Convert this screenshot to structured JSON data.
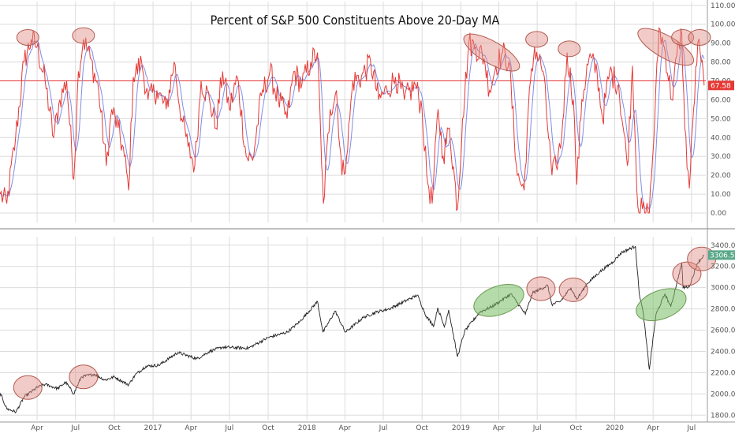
{
  "chart_data": [
    {
      "panel": "top",
      "type": "line",
      "title": "Percent of S&P 500 Constituents Above 20-Day MA",
      "ylim": [
        -5,
        112
      ],
      "y_ticks": [
        "0.00",
        "10.00",
        "20.00",
        "30.00",
        "40.00",
        "50.00",
        "60.00",
        "70.00",
        "80.00",
        "90.00",
        "100.00",
        "110.00"
      ],
      "last_value": "67.58",
      "reference_line": 70,
      "grid": true,
      "series": [
        {
          "color": "#e53935",
          "anchors": [
            [
              "2016-01-04",
              10
            ],
            [
              "2016-01-20",
              5
            ],
            [
              "2016-02-10",
              40
            ],
            [
              "2016-03-01",
              80
            ],
            [
              "2016-03-18",
              92
            ],
            [
              "2016-04-01",
              88
            ],
            [
              "2016-04-20",
              70
            ],
            [
              "2016-05-10",
              40
            ],
            [
              "2016-05-25",
              60
            ],
            [
              "2016-06-10",
              70
            ],
            [
              "2016-06-27",
              18
            ],
            [
              "2016-07-08",
              75
            ],
            [
              "2016-07-20",
              92
            ],
            [
              "2016-08-05",
              82
            ],
            [
              "2016-08-25",
              65
            ],
            [
              "2016-09-12",
              25
            ],
            [
              "2016-09-25",
              55
            ],
            [
              "2016-10-10",
              45
            ],
            [
              "2016-10-25",
              30
            ],
            [
              "2016-11-04",
              12
            ],
            [
              "2016-11-15",
              72
            ],
            [
              "2016-12-05",
              80
            ],
            [
              "2016-12-20",
              60
            ],
            [
              "2017-01-10",
              65
            ],
            [
              "2017-02-01",
              55
            ],
            [
              "2017-02-20",
              80
            ],
            [
              "2017-03-10",
              50
            ],
            [
              "2017-03-25",
              35
            ],
            [
              "2017-04-10",
              25
            ],
            [
              "2017-04-25",
              70
            ],
            [
              "2017-05-15",
              60
            ],
            [
              "2017-05-30",
              45
            ],
            [
              "2017-06-15",
              75
            ],
            [
              "2017-07-01",
              55
            ],
            [
              "2017-07-20",
              72
            ],
            [
              "2017-08-10",
              30
            ],
            [
              "2017-08-25",
              28
            ],
            [
              "2017-09-15",
              62
            ],
            [
              "2017-10-05",
              75
            ],
            [
              "2017-10-25",
              60
            ],
            [
              "2017-11-15",
              50
            ],
            [
              "2017-12-01",
              75
            ],
            [
              "2017-12-20",
              68
            ],
            [
              "2018-01-10",
              80
            ],
            [
              "2018-01-26",
              85
            ],
            [
              "2018-02-05",
              25
            ],
            [
              "2018-02-09",
              5
            ],
            [
              "2018-02-25",
              55
            ],
            [
              "2018-03-12",
              65
            ],
            [
              "2018-03-25",
              20
            ],
            [
              "2018-04-05",
              30
            ],
            [
              "2018-04-20",
              70
            ],
            [
              "2018-05-10",
              72
            ],
            [
              "2018-06-01",
              80
            ],
            [
              "2018-06-20",
              60
            ],
            [
              "2018-07-10",
              65
            ],
            [
              "2018-07-30",
              72
            ],
            [
              "2018-08-20",
              60
            ],
            [
              "2018-09-15",
              68
            ],
            [
              "2018-10-01",
              55
            ],
            [
              "2018-10-12",
              20
            ],
            [
              "2018-10-25",
              5
            ],
            [
              "2018-11-08",
              55
            ],
            [
              "2018-11-20",
              30
            ],
            [
              "2018-12-05",
              45
            ],
            [
              "2018-12-24",
              2
            ],
            [
              "2019-01-05",
              50
            ],
            [
              "2019-01-20",
              90
            ],
            [
              "2019-02-05",
              88
            ],
            [
              "2019-02-25",
              82
            ],
            [
              "2019-03-10",
              65
            ],
            [
              "2019-03-25",
              78
            ],
            [
              "2019-04-10",
              85
            ],
            [
              "2019-04-25",
              80
            ],
            [
              "2019-05-15",
              20
            ],
            [
              "2019-05-31",
              12
            ],
            [
              "2019-06-10",
              55
            ],
            [
              "2019-06-25",
              88
            ],
            [
              "2019-07-15",
              75
            ],
            [
              "2019-08-05",
              20
            ],
            [
              "2019-08-15",
              25
            ],
            [
              "2019-08-28",
              40
            ],
            [
              "2019-09-10",
              85
            ],
            [
              "2019-09-25",
              60
            ],
            [
              "2019-10-03",
              15
            ],
            [
              "2019-10-15",
              60
            ],
            [
              "2019-11-01",
              82
            ],
            [
              "2019-11-20",
              75
            ],
            [
              "2019-12-03",
              50
            ],
            [
              "2019-12-20",
              75
            ],
            [
              "2020-01-10",
              68
            ],
            [
              "2020-01-31",
              25
            ],
            [
              "2020-02-12",
              78
            ],
            [
              "2020-02-25",
              3
            ],
            [
              "2020-03-12",
              0
            ],
            [
              "2020-03-23",
              0
            ],
            [
              "2020-04-05",
              50
            ],
            [
              "2020-04-15",
              98
            ],
            [
              "2020-04-30",
              85
            ],
            [
              "2020-05-15",
              60
            ],
            [
              "2020-06-01",
              90
            ],
            [
              "2020-06-08",
              95
            ],
            [
              "2020-06-15",
              45
            ],
            [
              "2020-06-26",
              13
            ],
            [
              "2020-07-06",
              55
            ],
            [
              "2020-07-16",
              90
            ],
            [
              "2020-07-24",
              80
            ],
            [
              "2020-07-31",
              67.58
            ]
          ]
        },
        {
          "color": "#7e8ee8",
          "smoothed": true
        }
      ]
    },
    {
      "panel": "bottom",
      "type": "line",
      "ylim": [
        1750,
        3480
      ],
      "y_ticks": [
        "1800.00",
        "2000.00",
        "2200.00",
        "2400.00",
        "2600.00",
        "2800.00",
        "3000.00",
        "3200.00",
        "3400.00"
      ],
      "last_value": "3306.51",
      "grid": true,
      "series": [
        {
          "color": "#222222",
          "anchors": [
            [
              "2016-01-04",
              2010
            ],
            [
              "2016-01-20",
              1860
            ],
            [
              "2016-02-11",
              1830
            ],
            [
              "2016-03-01",
              1970
            ],
            [
              "2016-04-01",
              2060
            ],
            [
              "2016-04-20",
              2090
            ],
            [
              "2016-05-20",
              2050
            ],
            [
              "2016-06-08",
              2110
            ],
            [
              "2016-06-27",
              2000
            ],
            [
              "2016-07-15",
              2160
            ],
            [
              "2016-08-15",
              2185
            ],
            [
              "2016-09-09",
              2130
            ],
            [
              "2016-10-01",
              2160
            ],
            [
              "2016-11-04",
              2085
            ],
            [
              "2016-11-20",
              2180
            ],
            [
              "2016-12-15",
              2260
            ],
            [
              "2017-01-15",
              2270
            ],
            [
              "2017-03-01",
              2390
            ],
            [
              "2017-04-15",
              2330
            ],
            [
              "2017-05-15",
              2400
            ],
            [
              "2017-06-15",
              2440
            ],
            [
              "2017-08-15",
              2430
            ],
            [
              "2017-10-01",
              2530
            ],
            [
              "2017-11-15",
              2580
            ],
            [
              "2017-12-15",
              2680
            ],
            [
              "2018-01-26",
              2870
            ],
            [
              "2018-02-08",
              2580
            ],
            [
              "2018-03-09",
              2780
            ],
            [
              "2018-04-02",
              2580
            ],
            [
              "2018-05-15",
              2720
            ],
            [
              "2018-06-15",
              2770
            ],
            [
              "2018-07-15",
              2800
            ],
            [
              "2018-09-20",
              2930
            ],
            [
              "2018-10-11",
              2730
            ],
            [
              "2018-10-29",
              2640
            ],
            [
              "2018-11-07",
              2810
            ],
            [
              "2018-11-23",
              2630
            ],
            [
              "2018-12-03",
              2790
            ],
            [
              "2018-12-24",
              2350
            ],
            [
              "2019-01-10",
              2590
            ],
            [
              "2019-02-15",
              2770
            ],
            [
              "2019-03-15",
              2820
            ],
            [
              "2019-04-30",
              2940
            ],
            [
              "2019-06-03",
              2750
            ],
            [
              "2019-06-20",
              2950
            ],
            [
              "2019-07-26",
              3020
            ],
            [
              "2019-08-05",
              2840
            ],
            [
              "2019-08-25",
              2870
            ],
            [
              "2019-09-19",
              3000
            ],
            [
              "2019-10-03",
              2890
            ],
            [
              "2019-10-28",
              3040
            ],
            [
              "2019-11-27",
              3150
            ],
            [
              "2019-12-27",
              3240
            ],
            [
              "2020-01-17",
              3330
            ],
            [
              "2020-02-19",
              3390
            ],
            [
              "2020-02-28",
              2950
            ],
            [
              "2020-03-09",
              2750
            ],
            [
              "2020-03-23",
              2230
            ],
            [
              "2020-04-08",
              2750
            ],
            [
              "2020-04-29",
              2940
            ],
            [
              "2020-05-13",
              2820
            ],
            [
              "2020-06-08",
              3230
            ],
            [
              "2020-06-11",
              3000
            ],
            [
              "2020-06-26",
              3010
            ],
            [
              "2020-07-15",
              3230
            ],
            [
              "2020-07-31",
              3306.51
            ]
          ]
        }
      ]
    }
  ],
  "x_axis": {
    "labels": [
      "Apr",
      "Jul",
      "Oct",
      "2017",
      "Apr",
      "Jul",
      "Oct",
      "2018",
      "Apr",
      "Jul",
      "Oct",
      "2019",
      "Apr",
      "Jul",
      "Oct",
      "2020",
      "Apr",
      "Jul"
    ]
  },
  "annotations": [
    {
      "panel": "top",
      "color": "red",
      "x": "2016-03-10",
      "y": 93
    },
    {
      "panel": "top",
      "color": "red",
      "x": "2016-07-20",
      "y": 94
    },
    {
      "panel": "top",
      "color": "red",
      "x": "2019-03-15",
      "y": 85,
      "rotation": "tilted"
    },
    {
      "panel": "top",
      "color": "red",
      "x": "2019-06-30",
      "y": 92
    },
    {
      "panel": "top",
      "color": "red",
      "x": "2019-09-15",
      "y": 87
    },
    {
      "panel": "top",
      "color": "red",
      "x": "2020-05-01",
      "y": 88,
      "rotation": "tilted"
    },
    {
      "panel": "top",
      "color": "red",
      "x": "2020-06-10",
      "y": 93
    },
    {
      "panel": "top",
      "color": "red",
      "x": "2020-07-20",
      "y": 93
    },
    {
      "panel": "bottom",
      "color": "red",
      "x": "2016-03-10",
      "y": 2060
    },
    {
      "panel": "bottom",
      "color": "red",
      "x": "2016-07-20",
      "y": 2160
    },
    {
      "panel": "bottom",
      "color": "green",
      "x": "2019-04-01",
      "y": 2880
    },
    {
      "panel": "bottom",
      "color": "red",
      "x": "2019-07-10",
      "y": 2990
    },
    {
      "panel": "bottom",
      "color": "red",
      "x": "2019-09-25",
      "y": 2980
    },
    {
      "panel": "bottom",
      "color": "green",
      "x": "2020-04-20",
      "y": 2840
    },
    {
      "panel": "bottom",
      "color": "red",
      "x": "2020-06-20",
      "y": 3130
    },
    {
      "panel": "bottom",
      "color": "red",
      "x": "2020-07-25",
      "y": 3270
    }
  ]
}
